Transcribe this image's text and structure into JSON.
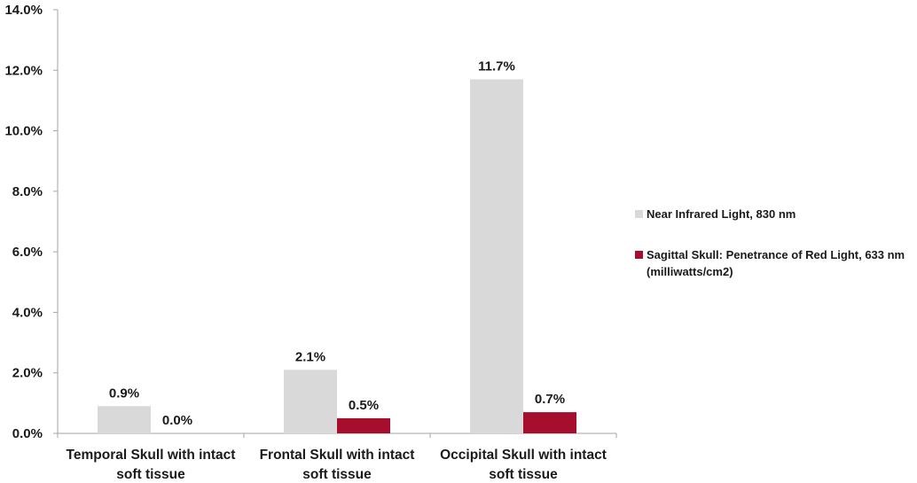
{
  "colors": {
    "near_infrared": "#d9d9d9",
    "red_light": "#a50f2d",
    "axis": "#a6a6a6",
    "text": "#1a1a1a"
  },
  "legend": [
    {
      "label": "Near Infrared Light, 830 nm",
      "color": "#d9d9d9"
    },
    {
      "label": "Sagittal Skull: Penetrance of Red Light, 633 nm\n(milliwatts/cm2)",
      "color": "#a50f2d"
    }
  ],
  "chart_data": {
    "type": "bar",
    "title": "",
    "xlabel": "",
    "ylabel": "",
    "ylim": [
      0,
      14
    ],
    "y_ticks": [
      0,
      2,
      4,
      6,
      8,
      10,
      12,
      14
    ],
    "y_tick_labels": [
      "0.0%",
      "2.0%",
      "4.0%",
      "6.0%",
      "8.0%",
      "10.0%",
      "12.0%",
      "14.0%"
    ],
    "y_unit": "%",
    "grid": false,
    "legend_position": "right",
    "categories": [
      [
        "Temporal Skull with intact",
        "soft tissue"
      ],
      [
        "Frontal Skull with intact",
        "soft tissue"
      ],
      [
        "Occipital Skull with intact",
        "soft tissue"
      ]
    ],
    "series": [
      {
        "name": "Near Infrared Light, 830 nm",
        "color": "#d9d9d9",
        "values": [
          0.9,
          2.1,
          11.7
        ],
        "labels": [
          "0.9%",
          "2.1%",
          "11.7%"
        ]
      },
      {
        "name": "Sagittal Skull: Penetrance of Red Light, 633 nm (milliwatts/cm2)",
        "color": "#a50f2d",
        "values": [
          0.0,
          0.5,
          0.7
        ],
        "labels": [
          "0.0%",
          "0.5%",
          "0.7%"
        ]
      }
    ]
  }
}
